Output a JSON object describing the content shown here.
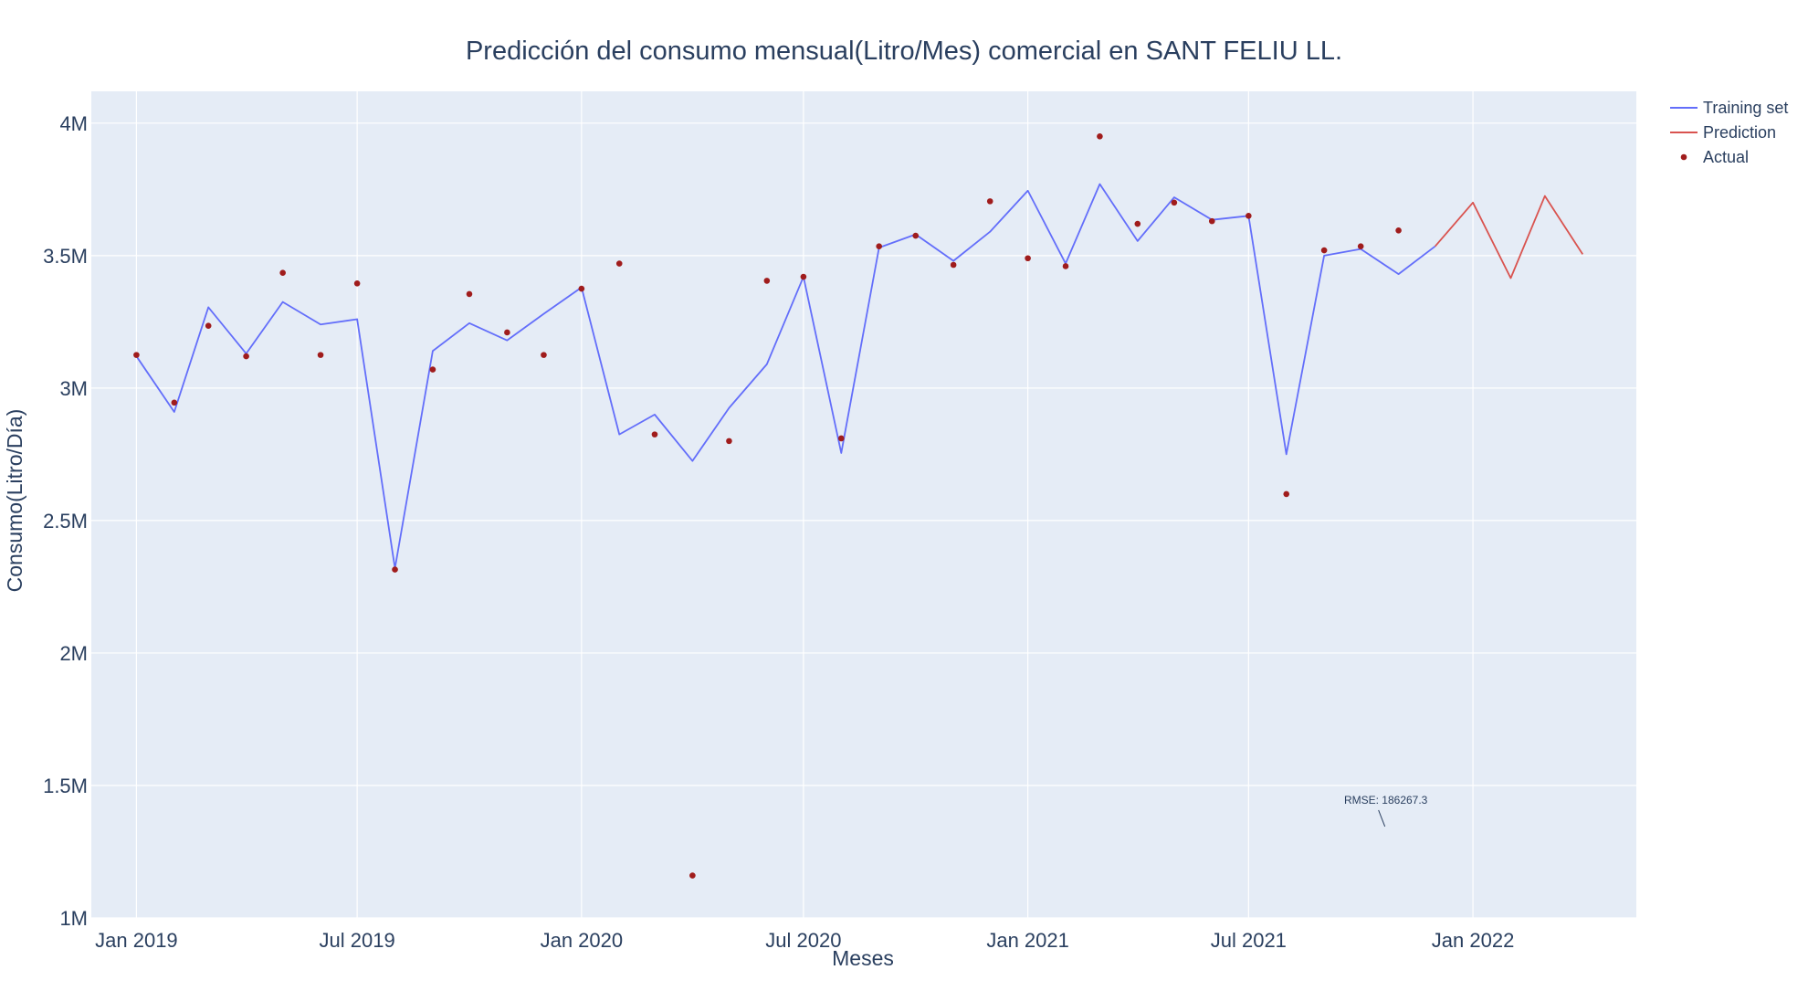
{
  "chart_data": {
    "type": "line",
    "title": "Predicción del consumo mensual(Litro/Mes) comercial en SANT FELIU LL.",
    "xlabel": "Meses",
    "ylabel": "Consumo(Litro/Día)",
    "ylim": [
      1000000,
      4120000
    ],
    "xlim": [
      "2018-11-25",
      "2022-05-15"
    ],
    "y_ticks": [
      {
        "value": 1000000,
        "label": "1M"
      },
      {
        "value": 1500000,
        "label": "1.5M"
      },
      {
        "value": 2000000,
        "label": "2M"
      },
      {
        "value": 2500000,
        "label": "2.5M"
      },
      {
        "value": 3000000,
        "label": "3M"
      },
      {
        "value": 3500000,
        "label": "3.5M"
      },
      {
        "value": 4000000,
        "label": "4M"
      }
    ],
    "x_ticks": [
      {
        "value": "2019-01-01",
        "label": "Jan 2019"
      },
      {
        "value": "2019-07-01",
        "label": "Jul 2019"
      },
      {
        "value": "2020-01-01",
        "label": "Jan 2020"
      },
      {
        "value": "2020-07-01",
        "label": "Jul 2020"
      },
      {
        "value": "2021-01-01",
        "label": "Jan 2021"
      },
      {
        "value": "2021-07-01",
        "label": "Jul 2021"
      },
      {
        "value": "2022-01-01",
        "label": "Jan 2022"
      }
    ],
    "grid": true,
    "legend_position": "top-right",
    "series": [
      {
        "name": "Training set",
        "kind": "line",
        "color": "#636efa",
        "x": [
          "2019-01-01",
          "2019-02-01",
          "2019-03-01",
          "2019-04-01",
          "2019-05-01",
          "2019-06-01",
          "2019-07-01",
          "2019-08-01",
          "2019-09-01",
          "2019-10-01",
          "2019-11-01",
          "2019-12-01",
          "2020-01-01",
          "2020-02-01",
          "2020-03-01",
          "2020-04-01",
          "2020-05-01",
          "2020-06-01",
          "2020-07-01",
          "2020-08-01",
          "2020-09-01",
          "2020-10-01",
          "2020-11-01",
          "2020-12-01",
          "2021-01-01",
          "2021-02-01",
          "2021-03-01",
          "2021-04-01",
          "2021-05-01",
          "2021-06-01",
          "2021-07-01",
          "2021-08-01",
          "2021-09-01",
          "2021-10-01",
          "2021-11-01",
          "2021-12-01"
        ],
        "y": [
          3120000,
          2910000,
          3305000,
          3130000,
          3325000,
          3240000,
          3260000,
          2320000,
          3140000,
          3245000,
          3180000,
          3280000,
          3380000,
          2825000,
          2900000,
          2725000,
          2925000,
          3090000,
          3420000,
          2755000,
          3530000,
          3580000,
          3480000,
          3590000,
          3745000,
          3470000,
          3770000,
          3555000,
          3720000,
          3635000,
          3650000,
          2750000,
          3500000,
          3525000,
          3430000,
          3535000
        ]
      },
      {
        "name": "Prediction",
        "kind": "line",
        "color": "#d9534f",
        "x": [
          "2021-12-01",
          "2022-01-01",
          "2022-02-01",
          "2022-03-01",
          "2022-04-01"
        ],
        "y": [
          3535000,
          3700000,
          3415000,
          3725000,
          3505000
        ]
      },
      {
        "name": "Actual",
        "kind": "markers",
        "color": "#a01c1c",
        "x": [
          "2019-01-01",
          "2019-02-01",
          "2019-03-01",
          "2019-04-01",
          "2019-05-01",
          "2019-06-01",
          "2019-07-01",
          "2019-08-01",
          "2019-09-01",
          "2019-10-01",
          "2019-11-01",
          "2019-12-01",
          "2020-01-01",
          "2020-02-01",
          "2020-03-01",
          "2020-04-01",
          "2020-05-01",
          "2020-06-01",
          "2020-07-01",
          "2020-08-01",
          "2020-09-01",
          "2020-10-01",
          "2020-11-01",
          "2020-12-01",
          "2021-01-01",
          "2021-02-01",
          "2021-03-01",
          "2021-04-01",
          "2021-05-01",
          "2021-06-01",
          "2021-07-01",
          "2021-08-01",
          "2021-09-01",
          "2021-10-01",
          "2021-11-01"
        ],
        "y": [
          3125000,
          2945000,
          3235000,
          3120000,
          3435000,
          3125000,
          3395000,
          2315000,
          3070000,
          3355000,
          3210000,
          3125000,
          3375000,
          3470000,
          2825000,
          1160000,
          2800000,
          3405000,
          3420000,
          2810000,
          3535000,
          3575000,
          3465000,
          3705000,
          3490000,
          3460000,
          3950000,
          3620000,
          3700000,
          3630000,
          3650000,
          2600000,
          3520000,
          3535000,
          3595000
        ]
      }
    ],
    "annotations": [
      {
        "text": "RMSE: 186267.3",
        "x": "2021-12-01",
        "y": 1300000
      }
    ]
  }
}
